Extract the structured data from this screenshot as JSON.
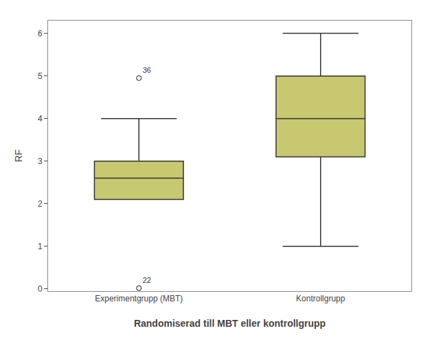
{
  "chart_data": {
    "type": "box",
    "categories": [
      "Experimentgrupp (MBT)",
      "Kontrollgrupp"
    ],
    "xlabel": "Randomiserad till MBT eller kontrollgrupp",
    "ylabel": "RF",
    "ylim": [
      -0.05,
      6.3
    ],
    "yticks": [
      0,
      1,
      2,
      3,
      4,
      5,
      6
    ],
    "grid": false,
    "color": "#c8c870",
    "boxes": [
      {
        "q1": 2.1,
        "median": 2.6,
        "q3": 3.0,
        "whisker_low": null,
        "whisker_high": 4.0,
        "fliers": [
          4.95,
          0.02
        ],
        "flier_labels": [
          "36",
          "22"
        ]
      },
      {
        "q1": 3.1,
        "median": 4.0,
        "q3": 5.0,
        "whisker_low": 1.0,
        "whisker_high": 6.0,
        "fliers": [],
        "flier_labels": []
      }
    ]
  }
}
